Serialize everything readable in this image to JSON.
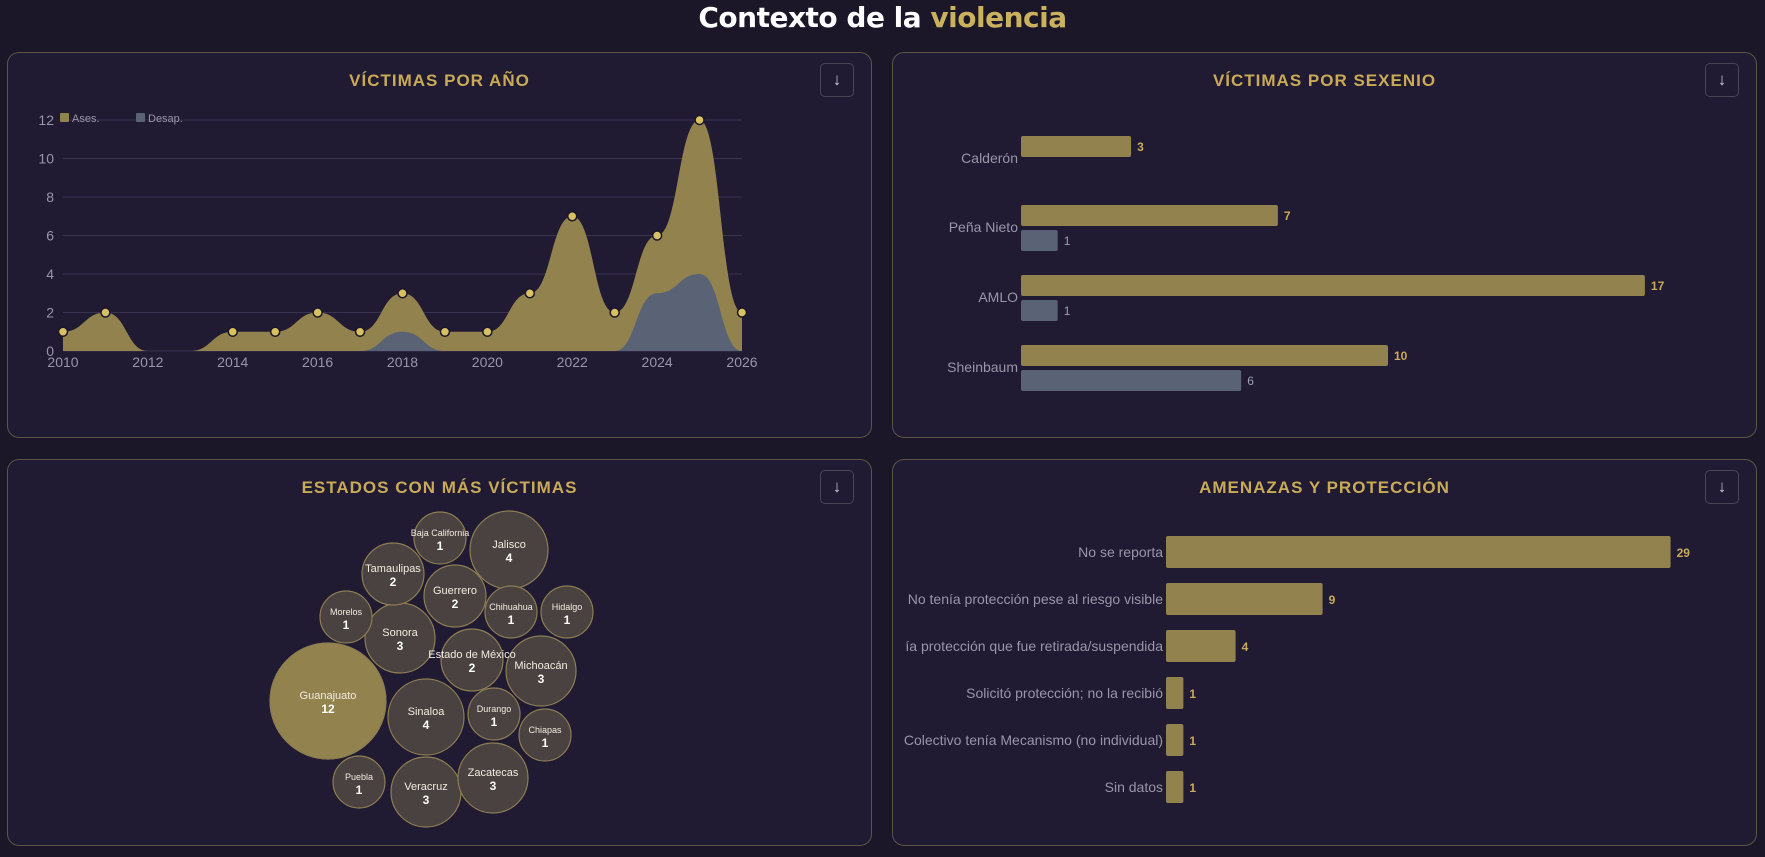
{
  "header": {
    "title_main": "Contexto de la",
    "title_accent": "violencia"
  },
  "colors": {
    "gold": "#92824d",
    "gold_point": "#d8c160",
    "slate": "#5a6376",
    "accent_text": "#c9ab57",
    "axis_text": "#9a95a8",
    "bubble_fill": "#4a4240",
    "bubble_stroke": "#8c7d52"
  },
  "panels": {
    "victimas_por_ano": {
      "title": "VÍCTIMAS POR AÑO",
      "download_icon": "↓"
    },
    "victimas_por_sexenio": {
      "title": "VÍCTIMAS POR SEXENIO",
      "download_icon": "↓"
    },
    "estados": {
      "title": "ESTADOS CON MÁS VÍCTIMAS",
      "download_icon": "↓"
    },
    "amenazas": {
      "title": "AMENAZAS Y PROTECCIÓN",
      "download_icon": "↓"
    }
  },
  "chart_data": [
    {
      "type": "area",
      "title": "VÍCTIMAS POR AÑO",
      "x": [
        2010,
        2011,
        2012,
        2013,
        2014,
        2015,
        2016,
        2017,
        2018,
        2019,
        2020,
        2021,
        2022,
        2023,
        2024,
        2025,
        2026
      ],
      "series": [
        {
          "name": "Ases.",
          "values": [
            1,
            2,
            0,
            0,
            1,
            1,
            2,
            1,
            3,
            1,
            1,
            3,
            7,
            2,
            6,
            12,
            2
          ]
        },
        {
          "name": "Desap.",
          "values": [
            0,
            0,
            0,
            0,
            0,
            0,
            0,
            0,
            1,
            0,
            0,
            0,
            0,
            0,
            3,
            4,
            0
          ]
        }
      ],
      "xticks": [
        "2010",
        "2012",
        "2014",
        "2016",
        "2018",
        "2020",
        "2022",
        "2024",
        "2026"
      ],
      "yticks": [
        "0",
        "2",
        "4",
        "6",
        "8",
        "10",
        "12"
      ],
      "xlim": [
        2010,
        2026
      ],
      "ylim": [
        0,
        12
      ],
      "grid": true,
      "legend": "top-left"
    },
    {
      "type": "bar",
      "orientation": "horizontal",
      "title": "VÍCTIMAS POR SEXENIO",
      "categories": [
        "Calderón",
        "Peña Nieto",
        "AMLO",
        "Sheinbaum"
      ],
      "series": [
        {
          "name": "Ases.",
          "values": [
            3,
            7,
            17,
            10
          ]
        },
        {
          "name": "Desap.",
          "values": [
            null,
            1,
            1,
            6
          ]
        }
      ]
    },
    {
      "type": "bubble",
      "title": "ESTADOS CON MÁS VÍCTIMAS",
      "items": [
        {
          "label": "Guanajuato",
          "value": 12
        },
        {
          "label": "Jalisco",
          "value": 4
        },
        {
          "label": "Sinaloa",
          "value": 4
        },
        {
          "label": "Sonora",
          "value": 3
        },
        {
          "label": "Michoacán",
          "value": 3
        },
        {
          "label": "Veracruz",
          "value": 3
        },
        {
          "label": "Zacatecas",
          "value": 3
        },
        {
          "label": "Tamaulipas",
          "value": 2
        },
        {
          "label": "Guerrero",
          "value": 2
        },
        {
          "label": "Estado de México",
          "value": 2
        },
        {
          "label": "Baja California",
          "value": 1
        },
        {
          "label": "Morelos",
          "value": 1
        },
        {
          "label": "Chihuahua",
          "value": 1
        },
        {
          "label": "Hidalgo",
          "value": 1
        },
        {
          "label": "Durango",
          "value": 1
        },
        {
          "label": "Chiapas",
          "value": 1
        },
        {
          "label": "Puebla",
          "value": 1
        }
      ]
    },
    {
      "type": "bar",
      "orientation": "horizontal",
      "title": "AMENAZAS Y PROTECCIÓN",
      "categories": [
        "No se reporta",
        "No tenía protección pese al riesgo visible",
        "Tenía protección que fue retirada/suspendida",
        "Solicitó protección; no la recibió",
        "Colectivo tenía Mecanismo (no individual)",
        "Sin datos"
      ],
      "visible_labels": [
        "No se reporta",
        "No tenía protección pese al riesgo visible",
        "ía protección que fue retirada/suspendida",
        "Solicitó protección; no la recibió",
        "Colectivo tenía Mecanismo (no individual)",
        "Sin datos"
      ],
      "values": [
        29,
        9,
        4,
        1,
        1,
        1
      ]
    }
  ]
}
